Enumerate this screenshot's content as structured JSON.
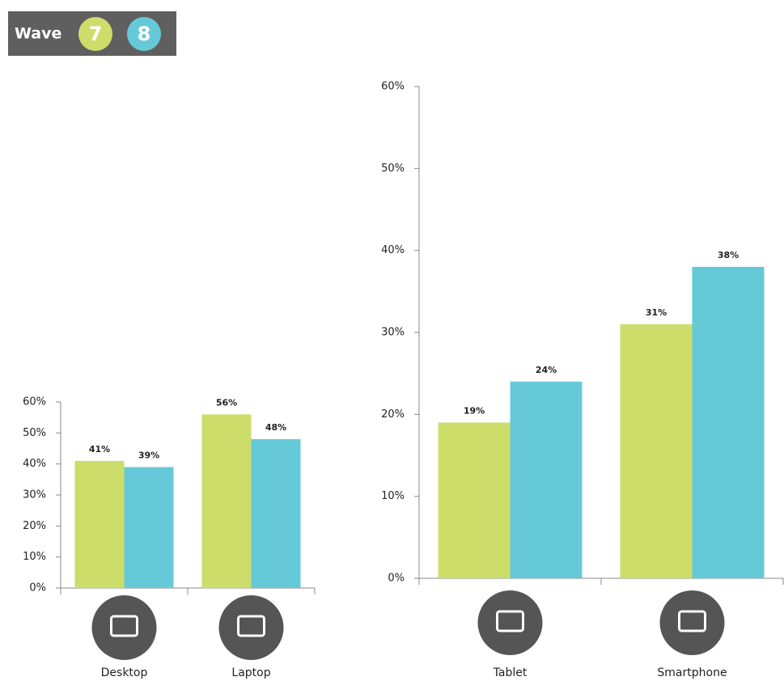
{
  "chart_data": [
    {
      "type": "bar",
      "legend_title": "Wave",
      "categories": [
        "Desktop",
        "Laptop"
      ],
      "series": [
        {
          "name": "7",
          "color": "#cddd6a",
          "values": [
            41,
            56
          ],
          "value_labels": [
            "41%",
            "56%"
          ]
        },
        {
          "name": "8",
          "color": "#66c9d8",
          "values": [
            39,
            48
          ],
          "value_labels": [
            "39%",
            "48%"
          ]
        }
      ],
      "ylim": [
        0,
        60
      ],
      "yticks": [
        {
          "value": 0,
          "label": "0%"
        },
        {
          "value": 10,
          "label": "10%"
        },
        {
          "value": 20,
          "label": "20%"
        },
        {
          "value": 30,
          "label": "30%"
        },
        {
          "value": 40,
          "label": "40%"
        },
        {
          "value": 50,
          "label": "50%"
        },
        {
          "value": 60,
          "label": "60%"
        }
      ]
    },
    {
      "type": "bar",
      "categories": [
        "Tablet",
        "Smartphone"
      ],
      "series": [
        {
          "name": "7",
          "color": "#cddd6a",
          "values": [
            19,
            31
          ],
          "value_labels": [
            "19%",
            "31%"
          ]
        },
        {
          "name": "8",
          "color": "#66c9d8",
          "values": [
            24,
            38
          ],
          "value_labels": [
            "24%",
            "38%"
          ]
        }
      ],
      "ylim": [
        0,
        60
      ],
      "yticks": [
        {
          "value": 0,
          "label": "0%"
        },
        {
          "value": 10,
          "label": "10%"
        },
        {
          "value": 20,
          "label": "20%"
        },
        {
          "value": 30,
          "label": "30%"
        },
        {
          "value": 40,
          "label": "40%"
        },
        {
          "value": 50,
          "label": "50%"
        },
        {
          "value": 60,
          "label": "60%"
        }
      ]
    }
  ]
}
